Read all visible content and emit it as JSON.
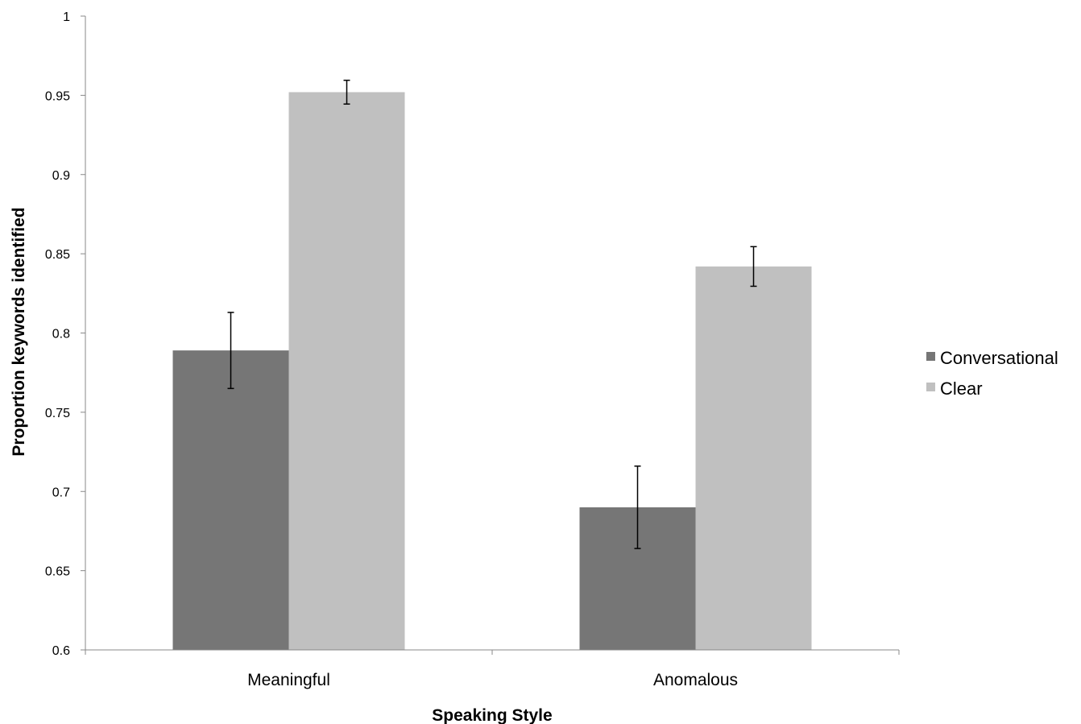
{
  "chart_data": {
    "type": "bar",
    "title": "",
    "xlabel": "Speaking Style",
    "ylabel": "Proportion keywords identified",
    "ylim": [
      0.6,
      1
    ],
    "yticks": [
      "0.6",
      "0.65",
      "0.7",
      "0.75",
      "0.8",
      "0.85",
      "0.9",
      "0.95",
      "1"
    ],
    "categories": [
      "Meaningful",
      "Anomalous"
    ],
    "series": [
      {
        "name": "Conversational",
        "color": "#767676",
        "values": [
          0.789,
          0.69
        ],
        "error": [
          0.024,
          0.026
        ]
      },
      {
        "name": "Clear",
        "color": "#c0c0c0",
        "values": [
          0.952,
          0.842
        ],
        "error": [
          0.0075,
          0.0125
        ]
      }
    ],
    "grid": false,
    "error_bars": true,
    "legend_position": "right"
  }
}
